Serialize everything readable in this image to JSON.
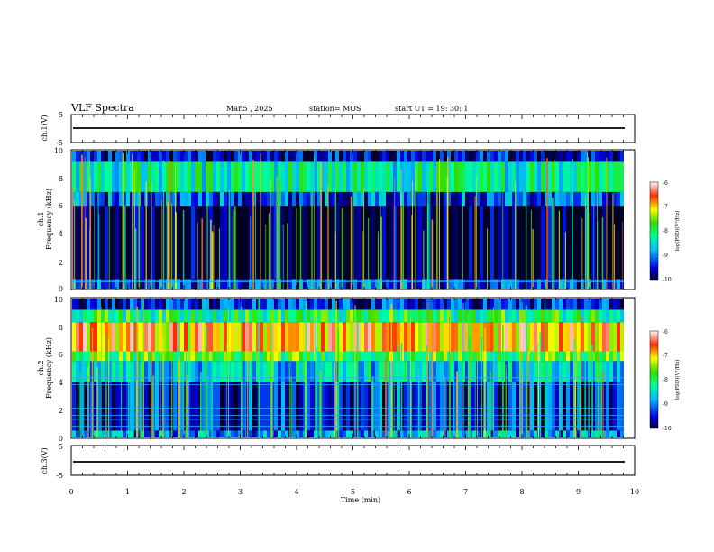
{
  "header": {
    "title": "VLF Spectra",
    "date": "Mar.5  , 2025",
    "station": "station= MOS",
    "start": "start  UT  =    19: 30: 1"
  },
  "colors": {
    "background": "#000010",
    "low": "#0000cc",
    "mid": "#00e0ff",
    "green": "#22dd44",
    "yellow": "#ffff00",
    "high": "#ff2200"
  },
  "chart_data": [
    {
      "type": "line",
      "ylabel": "ch.1(V)",
      "ylim": [
        -5,
        5
      ],
      "yticks": [
        "5",
        "-5"
      ],
      "series": [
        {
          "x": [
            0,
            9.85
          ],
          "values": [
            0,
            0
          ]
        }
      ]
    },
    {
      "type": "heatmap",
      "ylabel_lines": [
        "ch.1",
        "Frequency  (kHz)"
      ],
      "ylim": [
        0,
        10
      ],
      "yticks": [
        "0",
        "2",
        "4",
        "6",
        "8",
        "10"
      ],
      "xlim": [
        0,
        9.85
      ],
      "colorbar": {
        "label": "log(PSD)(V²/Hz)",
        "ticks": [
          "-6",
          "-7",
          "-8",
          "-9",
          "-10"
        ],
        "range": [
          -10,
          -6
        ]
      },
      "bands": [
        {
          "freq_range": [
            0,
            0.7
          ],
          "level": -9.3
        },
        {
          "freq_range": [
            0.7,
            6.0
          ],
          "level": -10.0
        },
        {
          "freq_range": [
            6.0,
            7.0
          ],
          "level": -9.2
        },
        {
          "freq_range": [
            7.0,
            9.2
          ],
          "level": -8.3
        },
        {
          "freq_range": [
            9.2,
            10.0
          ],
          "level": -9.6
        }
      ],
      "tone_lines_khz": [
        0.5,
        0.6
      ]
    },
    {
      "type": "heatmap",
      "ylabel_lines": [
        "ch.2",
        "Frequency  (kHz)"
      ],
      "ylim": [
        0,
        10
      ],
      "yticks": [
        "0",
        "2",
        "4",
        "6",
        "8",
        "10"
      ],
      "xlim": [
        0,
        9.85
      ],
      "colorbar": {
        "label": "log(PSD)(V²/Hz)",
        "ticks": [
          "-6",
          "-7",
          "-8",
          "-9",
          "-10"
        ],
        "range": [
          -10,
          -6
        ]
      },
      "bands": [
        {
          "freq_range": [
            0,
            0.5
          ],
          "level": -9.0
        },
        {
          "freq_range": [
            0.5,
            4.0
          ],
          "level": -9.4
        },
        {
          "freq_range": [
            4.0,
            5.5
          ],
          "level": -8.6
        },
        {
          "freq_range": [
            5.5,
            6.2
          ],
          "level": -7.8
        },
        {
          "freq_range": [
            6.2,
            8.3
          ],
          "level": -6.8
        },
        {
          "freq_range": [
            8.3,
            9.2
          ],
          "level": -8.0
        },
        {
          "freq_range": [
            9.2,
            10.0
          ],
          "level": -9.4
        }
      ],
      "tone_lines_khz": [
        0.8,
        1.3,
        1.6,
        2.1,
        3.8,
        4.3
      ]
    },
    {
      "type": "line",
      "ylabel": "ch.3(V)",
      "ylim": [
        -5,
        5
      ],
      "yticks": [
        "5",
        "-5"
      ],
      "series": [
        {
          "x": [
            0,
            9.85
          ],
          "values": [
            0,
            0
          ]
        }
      ]
    }
  ],
  "xaxis": {
    "label": "Time  (min)",
    "range": [
      0,
      10
    ],
    "ticks": [
      "0",
      "1",
      "2",
      "3",
      "4",
      "5",
      "6",
      "7",
      "8",
      "9",
      "10"
    ]
  }
}
